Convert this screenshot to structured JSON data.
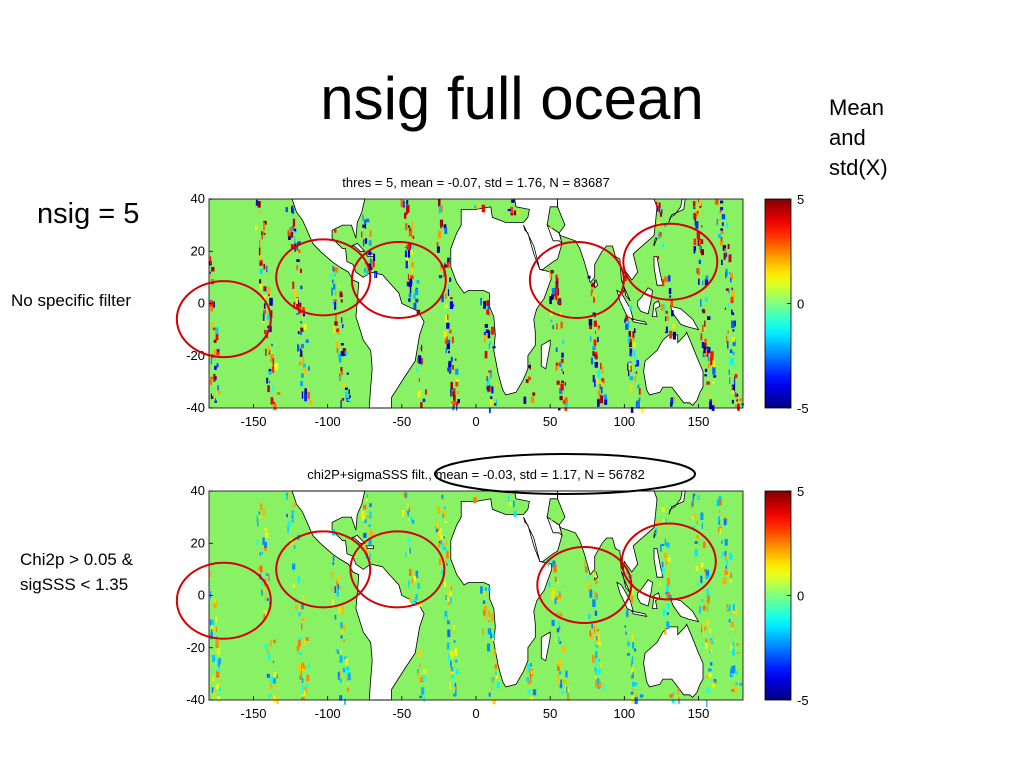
{
  "slide": {
    "title": "nsig full ocean",
    "note": "Mean and std(X)",
    "nsig_label": "nsig = 5",
    "top_filter_label": "No specific  filter",
    "bottom_filter_label": [
      "Chi2p > 0.05 &",
      "sigSSS < 1.35"
    ]
  },
  "colors": {
    "land": "#ffffff",
    "ocean_zero": "#88f264",
    "annotation_red": "#d40000",
    "annotation_black": "#000000"
  },
  "chart_data": [
    {
      "type": "heatmap",
      "title": "thres = 5, mean = -0.07, std = 1.76, N = 83687",
      "xlabel": "",
      "ylabel": "",
      "xlim": [
        -180,
        180
      ],
      "ylim": [
        -40,
        40
      ],
      "xticks": [
        -150,
        -100,
        -50,
        0,
        50,
        100,
        150
      ],
      "yticks": [
        40,
        20,
        0,
        -20,
        -40
      ],
      "colorbar": {
        "min": -5,
        "max": 5,
        "ticks": [
          5,
          0,
          -5
        ],
        "colormap": "jet"
      },
      "grid": false,
      "highlighted_regions": [
        {
          "lon": -170,
          "lat": -6
        },
        {
          "lon": -103,
          "lat": 10
        },
        {
          "lon": -52,
          "lat": 9
        },
        {
          "lon": 68,
          "lat": 9
        },
        {
          "lon": 131,
          "lat": 16
        }
      ]
    },
    {
      "type": "heatmap",
      "title": "chi2P+sigmaSSS filt., mean = -0.03, std = 1.17, N = 56782",
      "xlabel": "",
      "ylabel": "",
      "xlim": [
        -180,
        180
      ],
      "ylim": [
        -40,
        40
      ],
      "xticks": [
        -150,
        -100,
        -50,
        0,
        50,
        100,
        150
      ],
      "yticks": [
        40,
        20,
        0,
        -20,
        -40
      ],
      "colorbar": {
        "min": -5,
        "max": 5,
        "ticks": [
          5,
          0,
          -5
        ],
        "colormap": "jet"
      },
      "grid": false,
      "highlighted_regions": [
        {
          "lon": -170,
          "lat": -2
        },
        {
          "lon": -103,
          "lat": 10
        },
        {
          "lon": -53,
          "lat": 10
        },
        {
          "lon": 73,
          "lat": 4
        },
        {
          "lon": 130,
          "lat": 13
        }
      ]
    }
  ]
}
